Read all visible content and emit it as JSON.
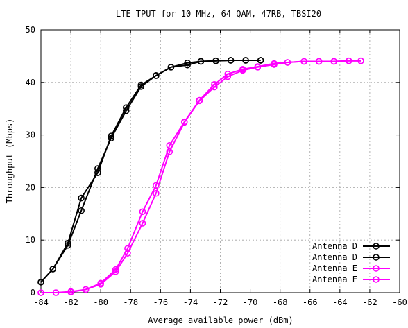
{
  "chart_data": {
    "type": "line",
    "title": "LTE TPUT for 10 MHz, 64 QAM, 47RB, TBSI20",
    "xlabel": "Average available power (dBm)",
    "ylabel": "Throughput (Mbps)",
    "xlim": [
      -84,
      -60
    ],
    "ylim": [
      0,
      50
    ],
    "x_ticks": [
      -84,
      -82,
      -80,
      -78,
      -76,
      -74,
      -72,
      -70,
      -68,
      -66,
      -64,
      -62,
      -60
    ],
    "y_ticks": [
      0,
      10,
      20,
      30,
      40,
      50
    ],
    "grid": true,
    "legend_position": "bottom-right",
    "marker": "open-circle",
    "series": [
      {
        "name": "Antenna D",
        "color": "#000000",
        "points": [
          [
            -84,
            2.0
          ],
          [
            -83.2,
            4.5
          ],
          [
            -82.2,
            9.0
          ],
          [
            -81.3,
            15.6
          ],
          [
            -80.2,
            23.6
          ],
          [
            -79.3,
            29.4
          ],
          [
            -78.3,
            34.6
          ],
          [
            -77.3,
            39.2
          ],
          [
            -76.3,
            41.3
          ],
          [
            -75.3,
            42.9
          ],
          [
            -74.2,
            43.7
          ],
          [
            -73.3,
            44.0
          ],
          [
            -72.3,
            44.1
          ],
          [
            -71.3,
            44.2
          ],
          [
            -70.3,
            44.2
          ],
          [
            -69.3,
            44.2
          ]
        ]
      },
      {
        "name": "Antenna D",
        "color": "#000000",
        "points": [
          [
            -84,
            2.0
          ],
          [
            -83.2,
            4.5
          ],
          [
            -82.2,
            9.4
          ],
          [
            -81.3,
            18.0
          ],
          [
            -80.2,
            22.8
          ],
          [
            -79.3,
            29.8
          ],
          [
            -78.3,
            35.2
          ],
          [
            -77.3,
            39.5
          ],
          [
            -76.3,
            41.3
          ],
          [
            -75.3,
            42.9
          ],
          [
            -74.2,
            43.3
          ],
          [
            -73.3,
            44.0
          ],
          [
            -72.3,
            44.1
          ],
          [
            -71.3,
            44.2
          ],
          [
            -70.3,
            44.2
          ],
          [
            -69.3,
            44.2
          ]
        ]
      },
      {
        "name": "Antenna E",
        "color": "#ff00ff",
        "points": [
          [
            -84,
            0.0
          ],
          [
            -83.0,
            0.0
          ],
          [
            -82.0,
            0.1
          ],
          [
            -81.0,
            0.6
          ],
          [
            -80.0,
            1.6
          ],
          [
            -79.0,
            4.0
          ],
          [
            -78.2,
            7.5
          ],
          [
            -77.2,
            13.2
          ],
          [
            -76.3,
            18.9
          ],
          [
            -75.4,
            26.8
          ],
          [
            -74.4,
            32.4
          ],
          [
            -73.4,
            36.5
          ],
          [
            -72.4,
            39.1
          ],
          [
            -71.5,
            41.1
          ],
          [
            -70.5,
            42.3
          ],
          [
            -69.5,
            42.9
          ],
          [
            -68.4,
            43.4
          ],
          [
            -67.5,
            43.8
          ],
          [
            -66.4,
            44.0
          ],
          [
            -65.4,
            44.0
          ],
          [
            -64.4,
            44.0
          ],
          [
            -63.4,
            44.1
          ],
          [
            -62.6,
            44.1
          ]
        ]
      },
      {
        "name": "Antenna E",
        "color": "#ff00ff",
        "points": [
          [
            -84,
            0.0
          ],
          [
            -83.0,
            0.0
          ],
          [
            -82.0,
            0.2
          ],
          [
            -81.0,
            0.6
          ],
          [
            -80.0,
            1.8
          ],
          [
            -79.0,
            4.4
          ],
          [
            -78.2,
            8.4
          ],
          [
            -77.2,
            15.4
          ],
          [
            -76.3,
            20.4
          ],
          [
            -75.4,
            28.0
          ],
          [
            -74.4,
            32.5
          ],
          [
            -73.4,
            36.6
          ],
          [
            -72.4,
            39.6
          ],
          [
            -71.5,
            41.6
          ],
          [
            -70.5,
            42.5
          ],
          [
            -69.5,
            43.0
          ],
          [
            -68.4,
            43.6
          ],
          [
            -67.5,
            43.8
          ],
          [
            -66.4,
            44.0
          ],
          [
            -65.4,
            44.0
          ],
          [
            -64.4,
            44.0
          ],
          [
            -63.4,
            44.1
          ],
          [
            -62.6,
            44.1
          ]
        ]
      }
    ]
  }
}
